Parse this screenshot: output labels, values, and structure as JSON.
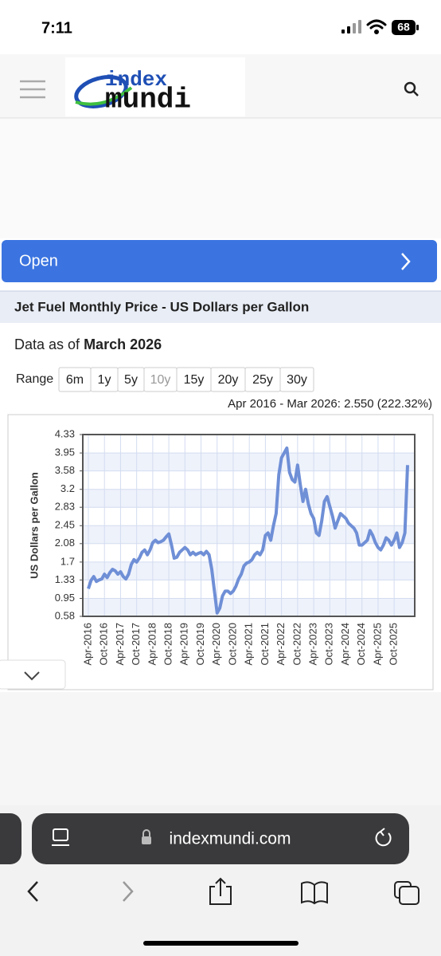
{
  "status_bar": {
    "time": "7:11",
    "battery": "68"
  },
  "header": {
    "logo_top": "index",
    "logo_bottom": "mundi"
  },
  "ad": {
    "button": "Open"
  },
  "section_title": "Jet Fuel Monthly Price - US Dollars per Gallon",
  "data_as_of": {
    "prefix": "Data as of",
    "date": "March 2026"
  },
  "range": {
    "label": "Range",
    "options": [
      "6m",
      "1y",
      "5y",
      "10y",
      "15y",
      "20y",
      "25y",
      "30y"
    ],
    "selected": "10y"
  },
  "summary": "Apr 2016 - Mar 2026: 2.550 (222.32%)",
  "chart_data": {
    "type": "line",
    "ylabel": "US Dollars per Gallon",
    "color": "#6f8fd6",
    "grid": true,
    "ylim": [
      0.58,
      4.33
    ],
    "yticks": [
      0.58,
      0.95,
      1.33,
      1.7,
      2.08,
      2.45,
      2.83,
      3.2,
      3.58,
      3.95,
      4.33
    ],
    "categories": [
      "Apr-2016",
      null,
      null,
      null,
      null,
      null,
      "Oct-2016",
      null,
      null,
      null,
      null,
      null,
      "Apr-2017",
      null,
      null,
      null,
      null,
      null,
      "Oct-2017",
      null,
      null,
      null,
      null,
      null,
      "Apr-2018",
      null,
      null,
      null,
      null,
      null,
      "Oct-2018",
      null,
      null,
      null,
      null,
      null,
      "Apr-2019",
      null,
      null,
      null,
      null,
      null,
      "Oct-2019",
      null,
      null,
      null,
      null,
      null,
      "Apr-2020",
      null,
      null,
      null,
      null,
      null,
      "Oct-2020",
      null,
      null,
      null,
      null,
      null,
      "Apr-2021",
      null,
      null,
      null,
      null,
      null,
      "Oct-2021",
      null,
      null,
      null,
      null,
      null,
      "Apr-2022",
      null,
      null,
      null,
      null,
      null,
      "Oct-2022",
      null,
      null,
      null,
      null,
      null,
      "Apr-2023",
      null,
      null,
      null,
      null,
      null,
      "Oct-2023",
      null,
      null,
      null,
      null,
      null,
      "Apr-2024",
      null,
      null,
      null,
      null,
      null,
      "Oct-2024",
      null,
      null,
      null,
      null,
      null,
      "Apr-2025",
      null,
      null,
      null,
      null,
      null,
      "Oct-2025",
      null,
      null,
      null,
      null,
      null
    ],
    "values": [
      1.15,
      1.32,
      1.4,
      1.3,
      1.33,
      1.35,
      1.45,
      1.38,
      1.48,
      1.55,
      1.52,
      1.45,
      1.5,
      1.4,
      1.35,
      1.45,
      1.65,
      1.75,
      1.7,
      1.78,
      1.9,
      1.95,
      1.85,
      1.95,
      2.1,
      2.15,
      2.1,
      2.12,
      2.15,
      2.22,
      2.28,
      2.05,
      1.78,
      1.8,
      1.9,
      1.95,
      2.0,
      1.95,
      1.85,
      1.9,
      1.85,
      1.88,
      1.9,
      1.85,
      1.92,
      1.85,
      1.55,
      1.1,
      0.65,
      0.75,
      1.0,
      1.1,
      1.1,
      1.05,
      1.1,
      1.2,
      1.35,
      1.45,
      1.62,
      1.68,
      1.7,
      1.75,
      1.85,
      1.9,
      1.85,
      1.95,
      2.25,
      2.3,
      2.15,
      2.45,
      2.7,
      3.5,
      3.85,
      3.95,
      4.05,
      3.55,
      3.4,
      3.35,
      3.7,
      3.3,
      2.95,
      3.2,
      2.9,
      2.7,
      2.6,
      2.3,
      2.25,
      2.55,
      2.95,
      3.05,
      2.85,
      2.65,
      2.4,
      2.55,
      2.7,
      2.65,
      2.6,
      2.5,
      2.45,
      2.4,
      2.3,
      2.05,
      2.05,
      2.1,
      2.15,
      2.35,
      2.25,
      2.1,
      2.0,
      1.95,
      2.05,
      2.2,
      2.15,
      2.05,
      2.15,
      2.3,
      2.0,
      2.1,
      2.3,
      3.7
    ]
  },
  "browser": {
    "url": "indexmundi.com"
  }
}
